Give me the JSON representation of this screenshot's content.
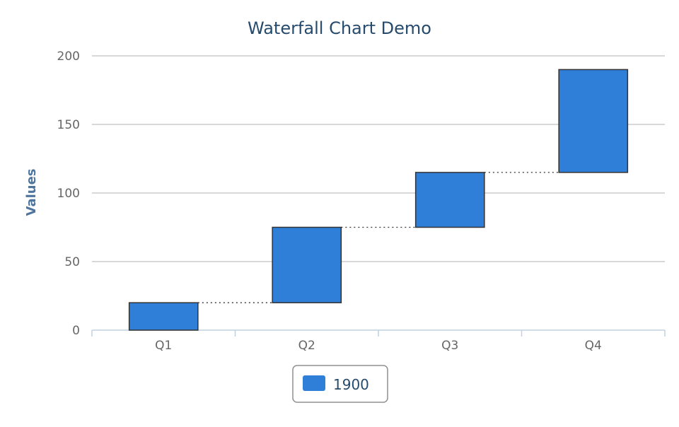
{
  "chart_data": {
    "type": "bar",
    "subtype": "waterfall",
    "title": "Waterfall Chart Demo",
    "xlabel": "",
    "ylabel": "Values",
    "categories": [
      "Q1",
      "Q2",
      "Q3",
      "Q4"
    ],
    "series": [
      {
        "name": "1900",
        "values": [
          20,
          55,
          40,
          75
        ],
        "color": "#2f7ed8"
      }
    ],
    "ylim": [
      0,
      200
    ],
    "yticks": [
      0,
      50,
      100,
      150,
      200
    ],
    "grid": true,
    "connectors": true,
    "legend": "bottom-center"
  }
}
